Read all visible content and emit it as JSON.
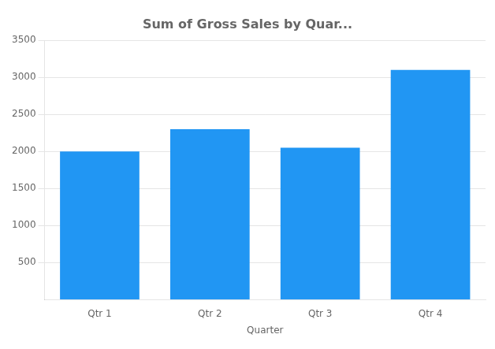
{
  "chart_data": {
    "type": "bar",
    "title": "Sum of Gross Sales by Quar...",
    "xlabel": "Quarter",
    "categories": [
      "Qtr 1",
      "Qtr 2",
      "Qtr 3",
      "Qtr 4"
    ],
    "values": [
      2000,
      2300,
      2050,
      3100
    ],
    "color": "#2196F3",
    "ylim": [
      0,
      3500
    ],
    "yticks": [
      500,
      1000,
      1500,
      2000,
      2500,
      3000,
      3500
    ],
    "grid": true
  }
}
